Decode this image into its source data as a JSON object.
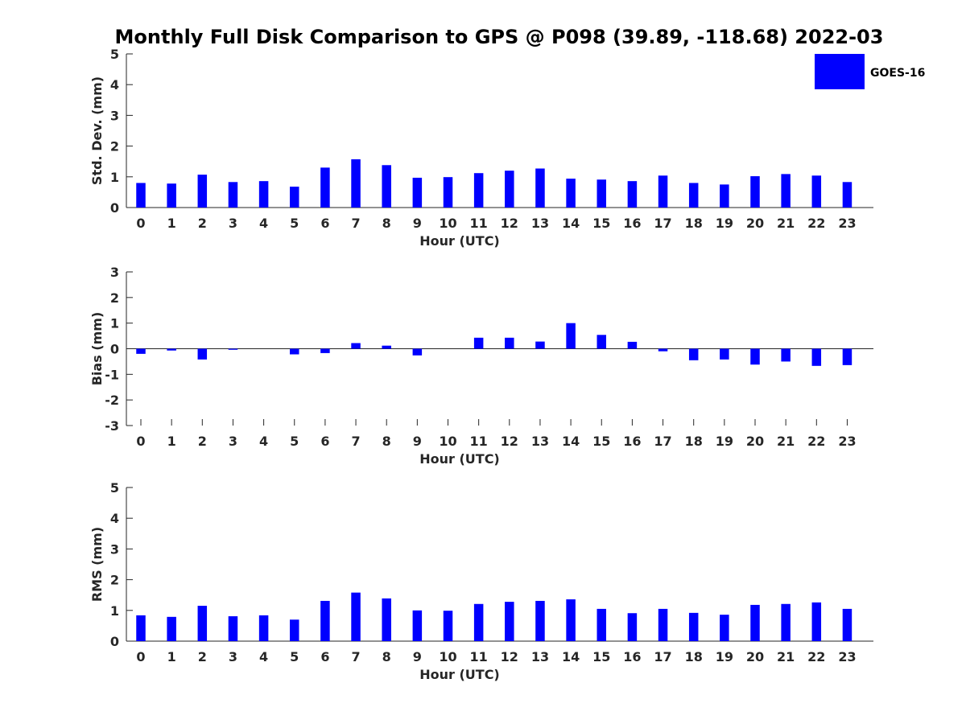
{
  "figure_title": "Monthly Full Disk Comparison to GPS @ P098 (39.89, -118.68) 2022-03",
  "legend": {
    "label": "GOES-16",
    "position": "top-right"
  },
  "bar_color": "#0000ff",
  "chart_data": [
    {
      "type": "bar",
      "xlabel": "Hour (UTC)",
      "ylabel": "Std. Dev. (mm)",
      "ylim": [
        0,
        5
      ],
      "yticks": [
        0,
        1,
        2,
        3,
        4,
        5
      ],
      "categories": [
        "0",
        "1",
        "2",
        "3",
        "4",
        "5",
        "6",
        "7",
        "8",
        "9",
        "10",
        "11",
        "12",
        "13",
        "14",
        "15",
        "16",
        "17",
        "18",
        "19",
        "20",
        "21",
        "22",
        "23"
      ],
      "series": [
        {
          "name": "GOES-16",
          "values": [
            0.8,
            0.78,
            1.07,
            0.83,
            0.86,
            0.68,
            1.3,
            1.57,
            1.38,
            0.97,
            0.99,
            1.12,
            1.2,
            1.27,
            0.94,
            0.91,
            0.86,
            1.04,
            0.8,
            0.75,
            1.02,
            1.09,
            1.04,
            0.83
          ]
        }
      ]
    },
    {
      "type": "bar",
      "xlabel": "Hour (UTC)",
      "ylabel": "Bias (mm)",
      "ylim": [
        -3,
        3
      ],
      "yticks": [
        -3,
        -2,
        -1,
        0,
        1,
        2,
        3
      ],
      "categories": [
        "0",
        "1",
        "2",
        "3",
        "4",
        "5",
        "6",
        "7",
        "8",
        "9",
        "10",
        "11",
        "12",
        "13",
        "14",
        "15",
        "16",
        "17",
        "18",
        "19",
        "20",
        "21",
        "22",
        "23"
      ],
      "series": [
        {
          "name": "GOES-16",
          "values": [
            -0.2,
            -0.07,
            -0.42,
            -0.04,
            0.0,
            -0.22,
            -0.17,
            0.22,
            0.12,
            -0.26,
            0.0,
            0.43,
            0.43,
            0.28,
            1.0,
            0.54,
            0.27,
            -0.1,
            -0.45,
            -0.42,
            -0.62,
            -0.5,
            -0.67,
            -0.64
          ]
        }
      ]
    },
    {
      "type": "bar",
      "xlabel": "Hour (UTC)",
      "ylabel": "RMS (mm)",
      "ylim": [
        0,
        5
      ],
      "yticks": [
        0,
        1,
        2,
        3,
        4,
        5
      ],
      "categories": [
        "0",
        "1",
        "2",
        "3",
        "4",
        "5",
        "6",
        "7",
        "8",
        "9",
        "10",
        "11",
        "12",
        "13",
        "14",
        "15",
        "16",
        "17",
        "18",
        "19",
        "20",
        "21",
        "22",
        "23"
      ],
      "series": [
        {
          "name": "GOES-16",
          "values": [
            0.84,
            0.79,
            1.15,
            0.81,
            0.84,
            0.7,
            1.31,
            1.58,
            1.39,
            1.0,
            0.99,
            1.21,
            1.28,
            1.31,
            1.36,
            1.05,
            0.91,
            1.05,
            0.92,
            0.86,
            1.18,
            1.21,
            1.26,
            1.05
          ]
        }
      ]
    }
  ]
}
